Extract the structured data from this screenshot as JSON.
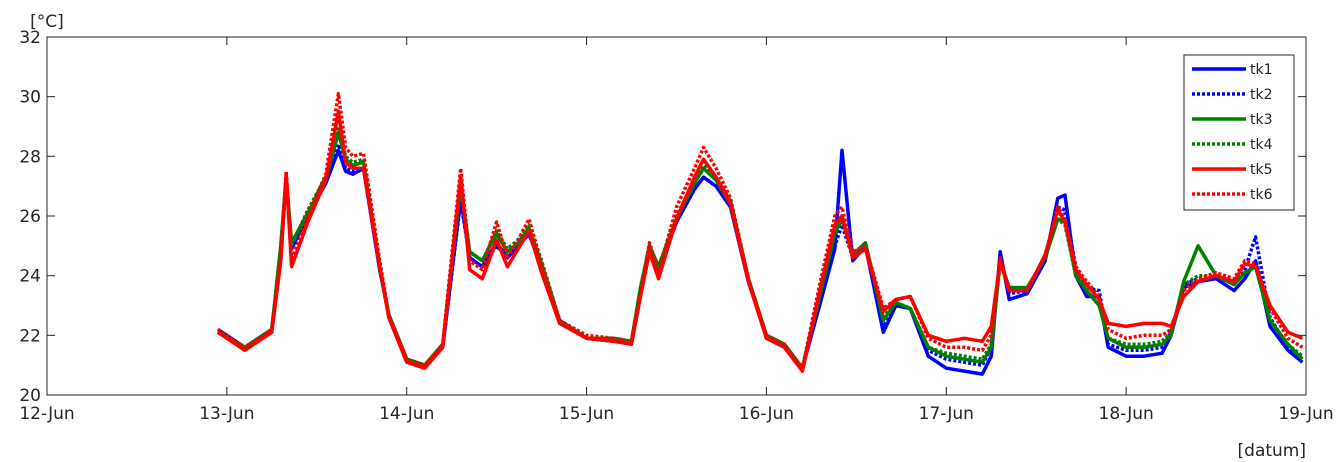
{
  "chart_data": {
    "type": "line",
    "title": "",
    "ylabel": "[°C]",
    "xlabel": "[datum]",
    "x_ticks": [
      "12-Jun",
      "13-Jun",
      "14-Jun",
      "15-Jun",
      "16-Jun",
      "17-Jun",
      "18-Jun",
      "19-Jun"
    ],
    "xlim_days": [
      12,
      19
    ],
    "ylim": [
      20,
      32
    ],
    "y_ticks": [
      20,
      22,
      24,
      26,
      28,
      30,
      32
    ],
    "grid": false,
    "legend_placement": "top-right",
    "x": [
      12.95,
      13.1,
      13.25,
      13.3,
      13.33,
      13.36,
      13.45,
      13.55,
      13.62,
      13.66,
      13.7,
      13.76,
      13.85,
      13.9,
      14.0,
      14.1,
      14.2,
      14.3,
      14.35,
      14.42,
      14.5,
      14.56,
      14.62,
      14.68,
      14.75,
      14.85,
      15.0,
      15.15,
      15.25,
      15.3,
      15.35,
      15.4,
      15.5,
      15.6,
      15.65,
      15.72,
      15.8,
      15.9,
      16.0,
      16.1,
      16.2,
      16.3,
      16.38,
      16.42,
      16.48,
      16.55,
      16.65,
      16.72,
      16.8,
      16.9,
      17.0,
      17.1,
      17.2,
      17.25,
      17.3,
      17.35,
      17.45,
      17.55,
      17.62,
      17.66,
      17.72,
      17.78,
      17.85,
      17.9,
      18.0,
      18.1,
      18.2,
      18.25,
      18.32,
      18.4,
      18.5,
      18.6,
      18.66,
      18.72,
      18.8,
      18.9,
      18.98
    ],
    "series": [
      {
        "name": "tk1",
        "color": "#0000ff",
        "dash": "solid",
        "values": [
          22.2,
          21.6,
          22.2,
          24.8,
          27.3,
          24.9,
          26.0,
          27.1,
          28.2,
          27.5,
          27.4,
          27.6,
          24.2,
          22.7,
          21.2,
          21.0,
          21.6,
          26.6,
          24.6,
          24.3,
          25.1,
          24.6,
          25.0,
          25.4,
          24.3,
          22.5,
          21.9,
          21.8,
          21.8,
          23.5,
          24.9,
          24.2,
          25.8,
          26.9,
          27.3,
          27.0,
          26.3,
          23.8,
          22.0,
          21.7,
          20.9,
          23.1,
          24.9,
          28.2,
          24.5,
          25.0,
          22.1,
          23.0,
          22.9,
          21.3,
          20.9,
          20.8,
          20.7,
          21.3,
          24.8,
          23.2,
          23.4,
          24.5,
          26.6,
          26.7,
          24.0,
          23.3,
          23.3,
          21.6,
          21.3,
          21.3,
          21.4,
          22.0,
          23.6,
          23.8,
          23.9,
          23.5,
          23.9,
          24.5,
          22.3,
          21.5,
          21.1
        ]
      },
      {
        "name": "tk2",
        "color": "#0000ff",
        "dash": "dotted",
        "values": [
          22.2,
          21.6,
          22.2,
          24.8,
          27.2,
          24.9,
          26.0,
          27.1,
          28.4,
          27.6,
          27.5,
          27.6,
          24.2,
          22.7,
          21.2,
          21.0,
          21.6,
          26.5,
          24.6,
          24.3,
          25.0,
          24.6,
          25.0,
          25.4,
          24.3,
          22.5,
          21.9,
          21.8,
          21.8,
          23.5,
          24.8,
          24.2,
          25.8,
          26.9,
          27.3,
          27.0,
          26.3,
          23.8,
          22.0,
          21.7,
          20.9,
          23.2,
          25.0,
          25.7,
          24.6,
          25.0,
          22.3,
          23.0,
          22.9,
          21.5,
          21.2,
          21.1,
          21.0,
          21.6,
          24.7,
          23.4,
          23.5,
          24.6,
          26.3,
          26.2,
          24.3,
          23.6,
          23.5,
          21.7,
          21.5,
          21.5,
          21.6,
          22.1,
          23.7,
          23.9,
          24.0,
          23.7,
          24.2,
          25.3,
          22.6,
          21.6,
          21.3
        ]
      },
      {
        "name": "tk3",
        "color": "#008000",
        "dash": "solid",
        "values": [
          22.1,
          21.6,
          22.2,
          25.0,
          27.3,
          25.1,
          26.1,
          27.2,
          28.8,
          27.9,
          27.7,
          27.8,
          24.3,
          22.7,
          21.2,
          21.0,
          21.7,
          27.0,
          24.8,
          24.5,
          25.4,
          24.8,
          25.1,
          25.6,
          24.4,
          22.5,
          21.9,
          21.9,
          21.8,
          23.6,
          25.0,
          24.3,
          25.9,
          27.1,
          27.6,
          27.2,
          26.4,
          23.9,
          22.0,
          21.7,
          20.9,
          23.4,
          25.4,
          25.9,
          24.7,
          25.1,
          22.5,
          23.1,
          22.9,
          21.6,
          21.3,
          21.2,
          21.1,
          21.6,
          24.5,
          23.6,
          23.6,
          24.6,
          25.9,
          25.8,
          24.0,
          23.5,
          23.0,
          21.9,
          21.6,
          21.6,
          21.7,
          22.0,
          23.8,
          25.0,
          24.0,
          23.7,
          24.1,
          24.3,
          22.5,
          21.7,
          21.2
        ]
      },
      {
        "name": "tk4",
        "color": "#008000",
        "dash": "dotted",
        "values": [
          22.1,
          21.6,
          22.2,
          25.0,
          27.3,
          25.0,
          26.2,
          27.3,
          29.0,
          28.0,
          27.8,
          27.9,
          24.4,
          22.7,
          21.2,
          21.0,
          21.7,
          27.1,
          24.8,
          24.5,
          25.5,
          24.9,
          25.2,
          25.7,
          24.5,
          22.5,
          21.9,
          21.9,
          21.8,
          23.6,
          25.0,
          24.3,
          26.0,
          27.2,
          27.7,
          27.3,
          26.5,
          23.9,
          22.0,
          21.7,
          20.9,
          23.5,
          25.5,
          26.0,
          24.7,
          25.1,
          22.6,
          23.1,
          22.9,
          21.6,
          21.4,
          21.3,
          21.2,
          21.7,
          24.4,
          23.6,
          23.6,
          24.6,
          25.9,
          25.7,
          24.0,
          23.5,
          23.0,
          21.9,
          21.7,
          21.7,
          21.8,
          22.1,
          23.7,
          24.0,
          24.0,
          23.7,
          24.1,
          24.3,
          22.5,
          21.7,
          21.3
        ]
      },
      {
        "name": "tk5",
        "color": "#ff0000",
        "dash": "solid",
        "values": [
          22.1,
          21.5,
          22.1,
          24.5,
          27.4,
          24.3,
          25.8,
          27.2,
          29.5,
          27.8,
          27.6,
          27.6,
          24.3,
          22.6,
          21.1,
          20.9,
          21.6,
          27.3,
          24.2,
          23.9,
          25.2,
          24.3,
          24.9,
          25.5,
          24.1,
          22.4,
          21.9,
          21.8,
          21.7,
          23.3,
          24.8,
          23.9,
          25.9,
          27.3,
          27.9,
          27.3,
          26.4,
          23.8,
          21.9,
          21.6,
          20.8,
          23.6,
          25.7,
          26.0,
          24.6,
          24.9,
          22.8,
          23.2,
          23.3,
          22.0,
          21.8,
          21.9,
          21.8,
          22.3,
          24.5,
          23.5,
          23.5,
          24.7,
          26.2,
          25.8,
          24.2,
          23.7,
          23.2,
          22.4,
          22.3,
          22.4,
          22.4,
          22.3,
          23.3,
          23.8,
          24.0,
          23.8,
          24.4,
          24.3,
          23.0,
          22.1,
          21.9
        ]
      },
      {
        "name": "tk6",
        "color": "#ff0000",
        "dash": "dotted",
        "values": [
          22.2,
          21.6,
          22.2,
          24.6,
          27.5,
          24.5,
          26.0,
          27.4,
          30.1,
          28.3,
          28.0,
          28.1,
          24.5,
          22.7,
          21.2,
          21.0,
          21.7,
          27.6,
          24.5,
          24.2,
          25.8,
          24.6,
          25.2,
          25.9,
          24.4,
          22.5,
          22.0,
          21.9,
          21.8,
          23.4,
          25.1,
          24.1,
          26.3,
          27.6,
          28.3,
          27.6,
          26.6,
          23.9,
          22.0,
          21.7,
          20.9,
          23.8,
          26.0,
          26.3,
          24.8,
          25.0,
          22.9,
          23.2,
          23.3,
          21.9,
          21.6,
          21.6,
          21.5,
          22.0,
          24.6,
          23.5,
          23.5,
          24.7,
          26.3,
          25.9,
          24.3,
          23.8,
          23.3,
          22.2,
          21.9,
          22.0,
          22.0,
          22.2,
          23.5,
          23.9,
          24.1,
          23.9,
          24.5,
          24.4,
          22.9,
          21.9,
          21.6
        ]
      }
    ]
  }
}
